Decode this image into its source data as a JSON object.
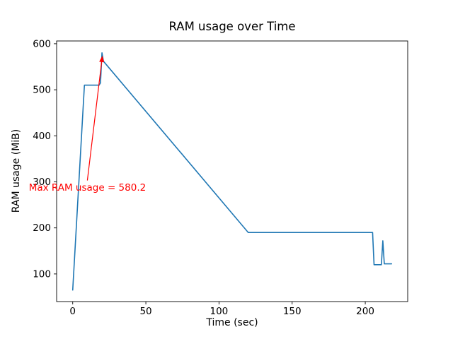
{
  "figure": {
    "background": "#ffffff",
    "frame_color": "#000000"
  },
  "chart_data": {
    "type": "line",
    "title": "RAM usage over Time",
    "xlabel": "Time (sec)",
    "ylabel": "RAM usage (MiB)",
    "xlim": [
      -11,
      229
    ],
    "ylim": [
      40,
      606
    ],
    "xticks": [
      0,
      50,
      100,
      150,
      200
    ],
    "yticks": [
      100,
      200,
      300,
      400,
      500,
      600
    ],
    "grid": false,
    "legend_position": "none",
    "line_color": "#1f77b4",
    "series": [
      {
        "name": "RAM usage (MiB)",
        "points": [
          [
            0,
            65
          ],
          [
            8,
            510
          ],
          [
            18,
            510
          ],
          [
            19,
            515
          ],
          [
            20,
            580.2
          ],
          [
            21,
            562
          ],
          [
            120,
            190
          ],
          [
            205,
            190
          ],
          [
            206,
            120
          ],
          [
            211,
            120
          ],
          [
            212,
            172
          ],
          [
            213,
            122
          ],
          [
            218,
            122
          ]
        ]
      }
    ],
    "max_value": 580.2,
    "annotation": {
      "text": "Max RAM usage = 580.2",
      "color": "#ff0000",
      "text_pos": [
        -30,
        287
      ],
      "arrow_from": [
        10,
        303
      ],
      "arrow_to": [
        20.3,
        574
      ]
    }
  }
}
